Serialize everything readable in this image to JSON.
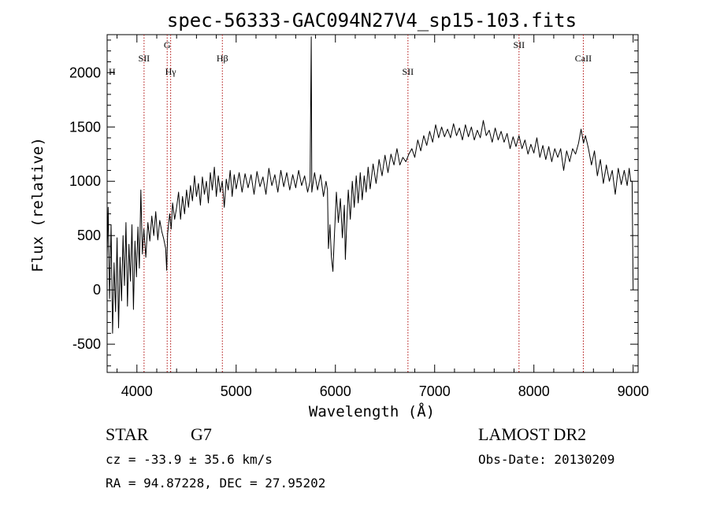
{
  "chart_data": {
    "type": "line",
    "title": "spec-56333-GAC094N27V4_sp15-103.fits",
    "xlabel": "Wavelength (Å)",
    "ylabel": "Flux (relative)",
    "xlim": [
      3700,
      9050
    ],
    "ylim": [
      -760,
      2350
    ],
    "xticks": [
      4000,
      5000,
      6000,
      7000,
      8000,
      9000
    ],
    "yticks": [
      -500,
      0,
      500,
      1000,
      1500,
      2000
    ],
    "grid": false,
    "series": [
      {
        "values": [
          [
            3700,
            300
          ],
          [
            3710,
            760
          ],
          [
            3725,
            -80
          ],
          [
            3740,
            600
          ],
          [
            3755,
            -400
          ],
          [
            3770,
            250
          ],
          [
            3785,
            -200
          ],
          [
            3800,
            480
          ],
          [
            3815,
            -350
          ],
          [
            3830,
            300
          ],
          [
            3845,
            -100
          ],
          [
            3860,
            500
          ],
          [
            3875,
            40
          ],
          [
            3890,
            620
          ],
          [
            3905,
            -150
          ],
          [
            3920,
            420
          ],
          [
            3935,
            80
          ],
          [
            3950,
            600
          ],
          [
            3965,
            -180
          ],
          [
            3980,
            450
          ],
          [
            3995,
            120
          ],
          [
            4010,
            580
          ],
          [
            4025,
            200
          ],
          [
            4040,
            920
          ],
          [
            4055,
            330
          ],
          [
            4070,
            560
          ],
          [
            4090,
            300
          ],
          [
            4110,
            620
          ],
          [
            4130,
            450
          ],
          [
            4150,
            680
          ],
          [
            4170,
            500
          ],
          [
            4190,
            720
          ],
          [
            4210,
            460
          ],
          [
            4230,
            640
          ],
          [
            4250,
            540
          ],
          [
            4270,
            470
          ],
          [
            4290,
            380
          ],
          [
            4300,
            180
          ],
          [
            4310,
            520
          ],
          [
            4330,
            700
          ],
          [
            4345,
            560
          ],
          [
            4360,
            800
          ],
          [
            4380,
            650
          ],
          [
            4400,
            760
          ],
          [
            4420,
            900
          ],
          [
            4440,
            650
          ],
          [
            4460,
            860
          ],
          [
            4480,
            700
          ],
          [
            4500,
            920
          ],
          [
            4520,
            760
          ],
          [
            4540,
            960
          ],
          [
            4560,
            820
          ],
          [
            4580,
            1050
          ],
          [
            4600,
            860
          ],
          [
            4620,
            980
          ],
          [
            4640,
            780
          ],
          [
            4660,
            1040
          ],
          [
            4680,
            880
          ],
          [
            4700,
            1000
          ],
          [
            4720,
            800
          ],
          [
            4740,
            1080
          ],
          [
            4760,
            920
          ],
          [
            4780,
            1130
          ],
          [
            4800,
            860
          ],
          [
            4820,
            1050
          ],
          [
            4840,
            900
          ],
          [
            4860,
            1000
          ],
          [
            4880,
            760
          ],
          [
            4900,
            1020
          ],
          [
            4920,
            920
          ],
          [
            4940,
            1100
          ],
          [
            4960,
            860
          ],
          [
            4980,
            1060
          ],
          [
            5000,
            930
          ],
          [
            5030,
            1080
          ],
          [
            5060,
            900
          ],
          [
            5090,
            1070
          ],
          [
            5120,
            940
          ],
          [
            5150,
            1060
          ],
          [
            5180,
            880
          ],
          [
            5210,
            1090
          ],
          [
            5240,
            950
          ],
          [
            5270,
            1040
          ],
          [
            5300,
            880
          ],
          [
            5330,
            1120
          ],
          [
            5360,
            960
          ],
          [
            5390,
            1060
          ],
          [
            5420,
            900
          ],
          [
            5450,
            1100
          ],
          [
            5480,
            950
          ],
          [
            5510,
            1080
          ],
          [
            5540,
            920
          ],
          [
            5570,
            1060
          ],
          [
            5600,
            940
          ],
          [
            5630,
            1100
          ],
          [
            5660,
            960
          ],
          [
            5690,
            1050
          ],
          [
            5720,
            900
          ],
          [
            5745,
            1000
          ],
          [
            5757,
            2330
          ],
          [
            5762,
            900
          ],
          [
            5790,
            1080
          ],
          [
            5820,
            920
          ],
          [
            5850,
            1060
          ],
          [
            5880,
            860
          ],
          [
            5905,
            1000
          ],
          [
            5920,
            920
          ],
          [
            5930,
            380
          ],
          [
            5945,
            600
          ],
          [
            5960,
            300
          ],
          [
            5975,
            170
          ],
          [
            5990,
            500
          ],
          [
            6010,
            900
          ],
          [
            6030,
            620
          ],
          [
            6050,
            840
          ],
          [
            6070,
            480
          ],
          [
            6090,
            780
          ],
          [
            6100,
            280
          ],
          [
            6115,
            620
          ],
          [
            6130,
            920
          ],
          [
            6150,
            650
          ],
          [
            6170,
            1000
          ],
          [
            6190,
            760
          ],
          [
            6210,
            1050
          ],
          [
            6230,
            800
          ],
          [
            6250,
            1080
          ],
          [
            6270,
            830
          ],
          [
            6290,
            1050
          ],
          [
            6310,
            900
          ],
          [
            6330,
            1130
          ],
          [
            6350,
            930
          ],
          [
            6380,
            1160
          ],
          [
            6410,
            980
          ],
          [
            6440,
            1200
          ],
          [
            6470,
            1050
          ],
          [
            6500,
            1240
          ],
          [
            6530,
            1080
          ],
          [
            6560,
            1250
          ],
          [
            6590,
            1150
          ],
          [
            6620,
            1300
          ],
          [
            6650,
            1150
          ],
          [
            6680,
            1220
          ],
          [
            6710,
            1180
          ],
          [
            6740,
            1250
          ],
          [
            6770,
            1300
          ],
          [
            6800,
            1220
          ],
          [
            6830,
            1380
          ],
          [
            6860,
            1280
          ],
          [
            6890,
            1420
          ],
          [
            6920,
            1330
          ],
          [
            6950,
            1460
          ],
          [
            6980,
            1360
          ],
          [
            7010,
            1520
          ],
          [
            7040,
            1400
          ],
          [
            7070,
            1500
          ],
          [
            7100,
            1410
          ],
          [
            7130,
            1480
          ],
          [
            7160,
            1400
          ],
          [
            7190,
            1530
          ],
          [
            7220,
            1420
          ],
          [
            7250,
            1490
          ],
          [
            7280,
            1380
          ],
          [
            7310,
            1520
          ],
          [
            7340,
            1410
          ],
          [
            7370,
            1500
          ],
          [
            7400,
            1380
          ],
          [
            7430,
            1470
          ],
          [
            7460,
            1400
          ],
          [
            7490,
            1560
          ],
          [
            7520,
            1420
          ],
          [
            7550,
            1470
          ],
          [
            7580,
            1360
          ],
          [
            7610,
            1490
          ],
          [
            7640,
            1380
          ],
          [
            7670,
            1460
          ],
          [
            7700,
            1360
          ],
          [
            7730,
            1440
          ],
          [
            7760,
            1300
          ],
          [
            7790,
            1410
          ],
          [
            7820,
            1320
          ],
          [
            7850,
            1420
          ],
          [
            7880,
            1300
          ],
          [
            7910,
            1380
          ],
          [
            7940,
            1250
          ],
          [
            7970,
            1340
          ],
          [
            8000,
            1260
          ],
          [
            8030,
            1400
          ],
          [
            8060,
            1220
          ],
          [
            8090,
            1330
          ],
          [
            8120,
            1200
          ],
          [
            8150,
            1320
          ],
          [
            8180,
            1180
          ],
          [
            8210,
            1300
          ],
          [
            8240,
            1220
          ],
          [
            8270,
            1300
          ],
          [
            8300,
            1100
          ],
          [
            8330,
            1280
          ],
          [
            8360,
            1180
          ],
          [
            8390,
            1300
          ],
          [
            8420,
            1250
          ],
          [
            8450,
            1350
          ],
          [
            8475,
            1480
          ],
          [
            8500,
            1350
          ],
          [
            8520,
            1420
          ],
          [
            8550,
            1300
          ],
          [
            8580,
            1150
          ],
          [
            8610,
            1280
          ],
          [
            8640,
            1050
          ],
          [
            8670,
            1200
          ],
          [
            8700,
            980
          ],
          [
            8730,
            1150
          ],
          [
            8760,
            1000
          ],
          [
            8790,
            1100
          ],
          [
            8820,
            880
          ],
          [
            8850,
            1120
          ],
          [
            8880,
            970
          ],
          [
            8910,
            1100
          ],
          [
            8940,
            960
          ],
          [
            8960,
            1120
          ],
          [
            8975,
            1000
          ],
          [
            8990,
            1000
          ],
          [
            8993,
            700
          ],
          [
            8997,
            300
          ],
          [
            9000,
            0
          ]
        ]
      }
    ],
    "lines": [
      {
        "label": "H",
        "x": 3700,
        "label_row": "low",
        "label_side": "right"
      },
      {
        "label": "SII",
        "x": 4072,
        "label_row": "mid"
      },
      {
        "label": "G",
        "x": 4305,
        "label_row": "top"
      },
      {
        "label": "Hγ",
        "x": 4340,
        "label_row": "low"
      },
      {
        "label": "Hβ",
        "x": 4861,
        "label_row": "mid"
      },
      {
        "label": "SII",
        "x": 6731,
        "label_row": "low"
      },
      {
        "label": "SII",
        "x": 7850,
        "label_row": "top"
      },
      {
        "label": "CaII",
        "x": 8498,
        "label_row": "mid"
      }
    ]
  },
  "info": {
    "object_class": "STAR",
    "subclass": "G7",
    "survey": "LAMOST DR2",
    "cz": "cz = -33.9 ± 35.6 km/s",
    "obs_date": "Obs-Date: 20130209",
    "radec": "RA =  94.87228, DEC =  27.95202"
  },
  "colors": {
    "spectrum": "#000000",
    "line_marker": "#b01010",
    "text": "#000000"
  }
}
